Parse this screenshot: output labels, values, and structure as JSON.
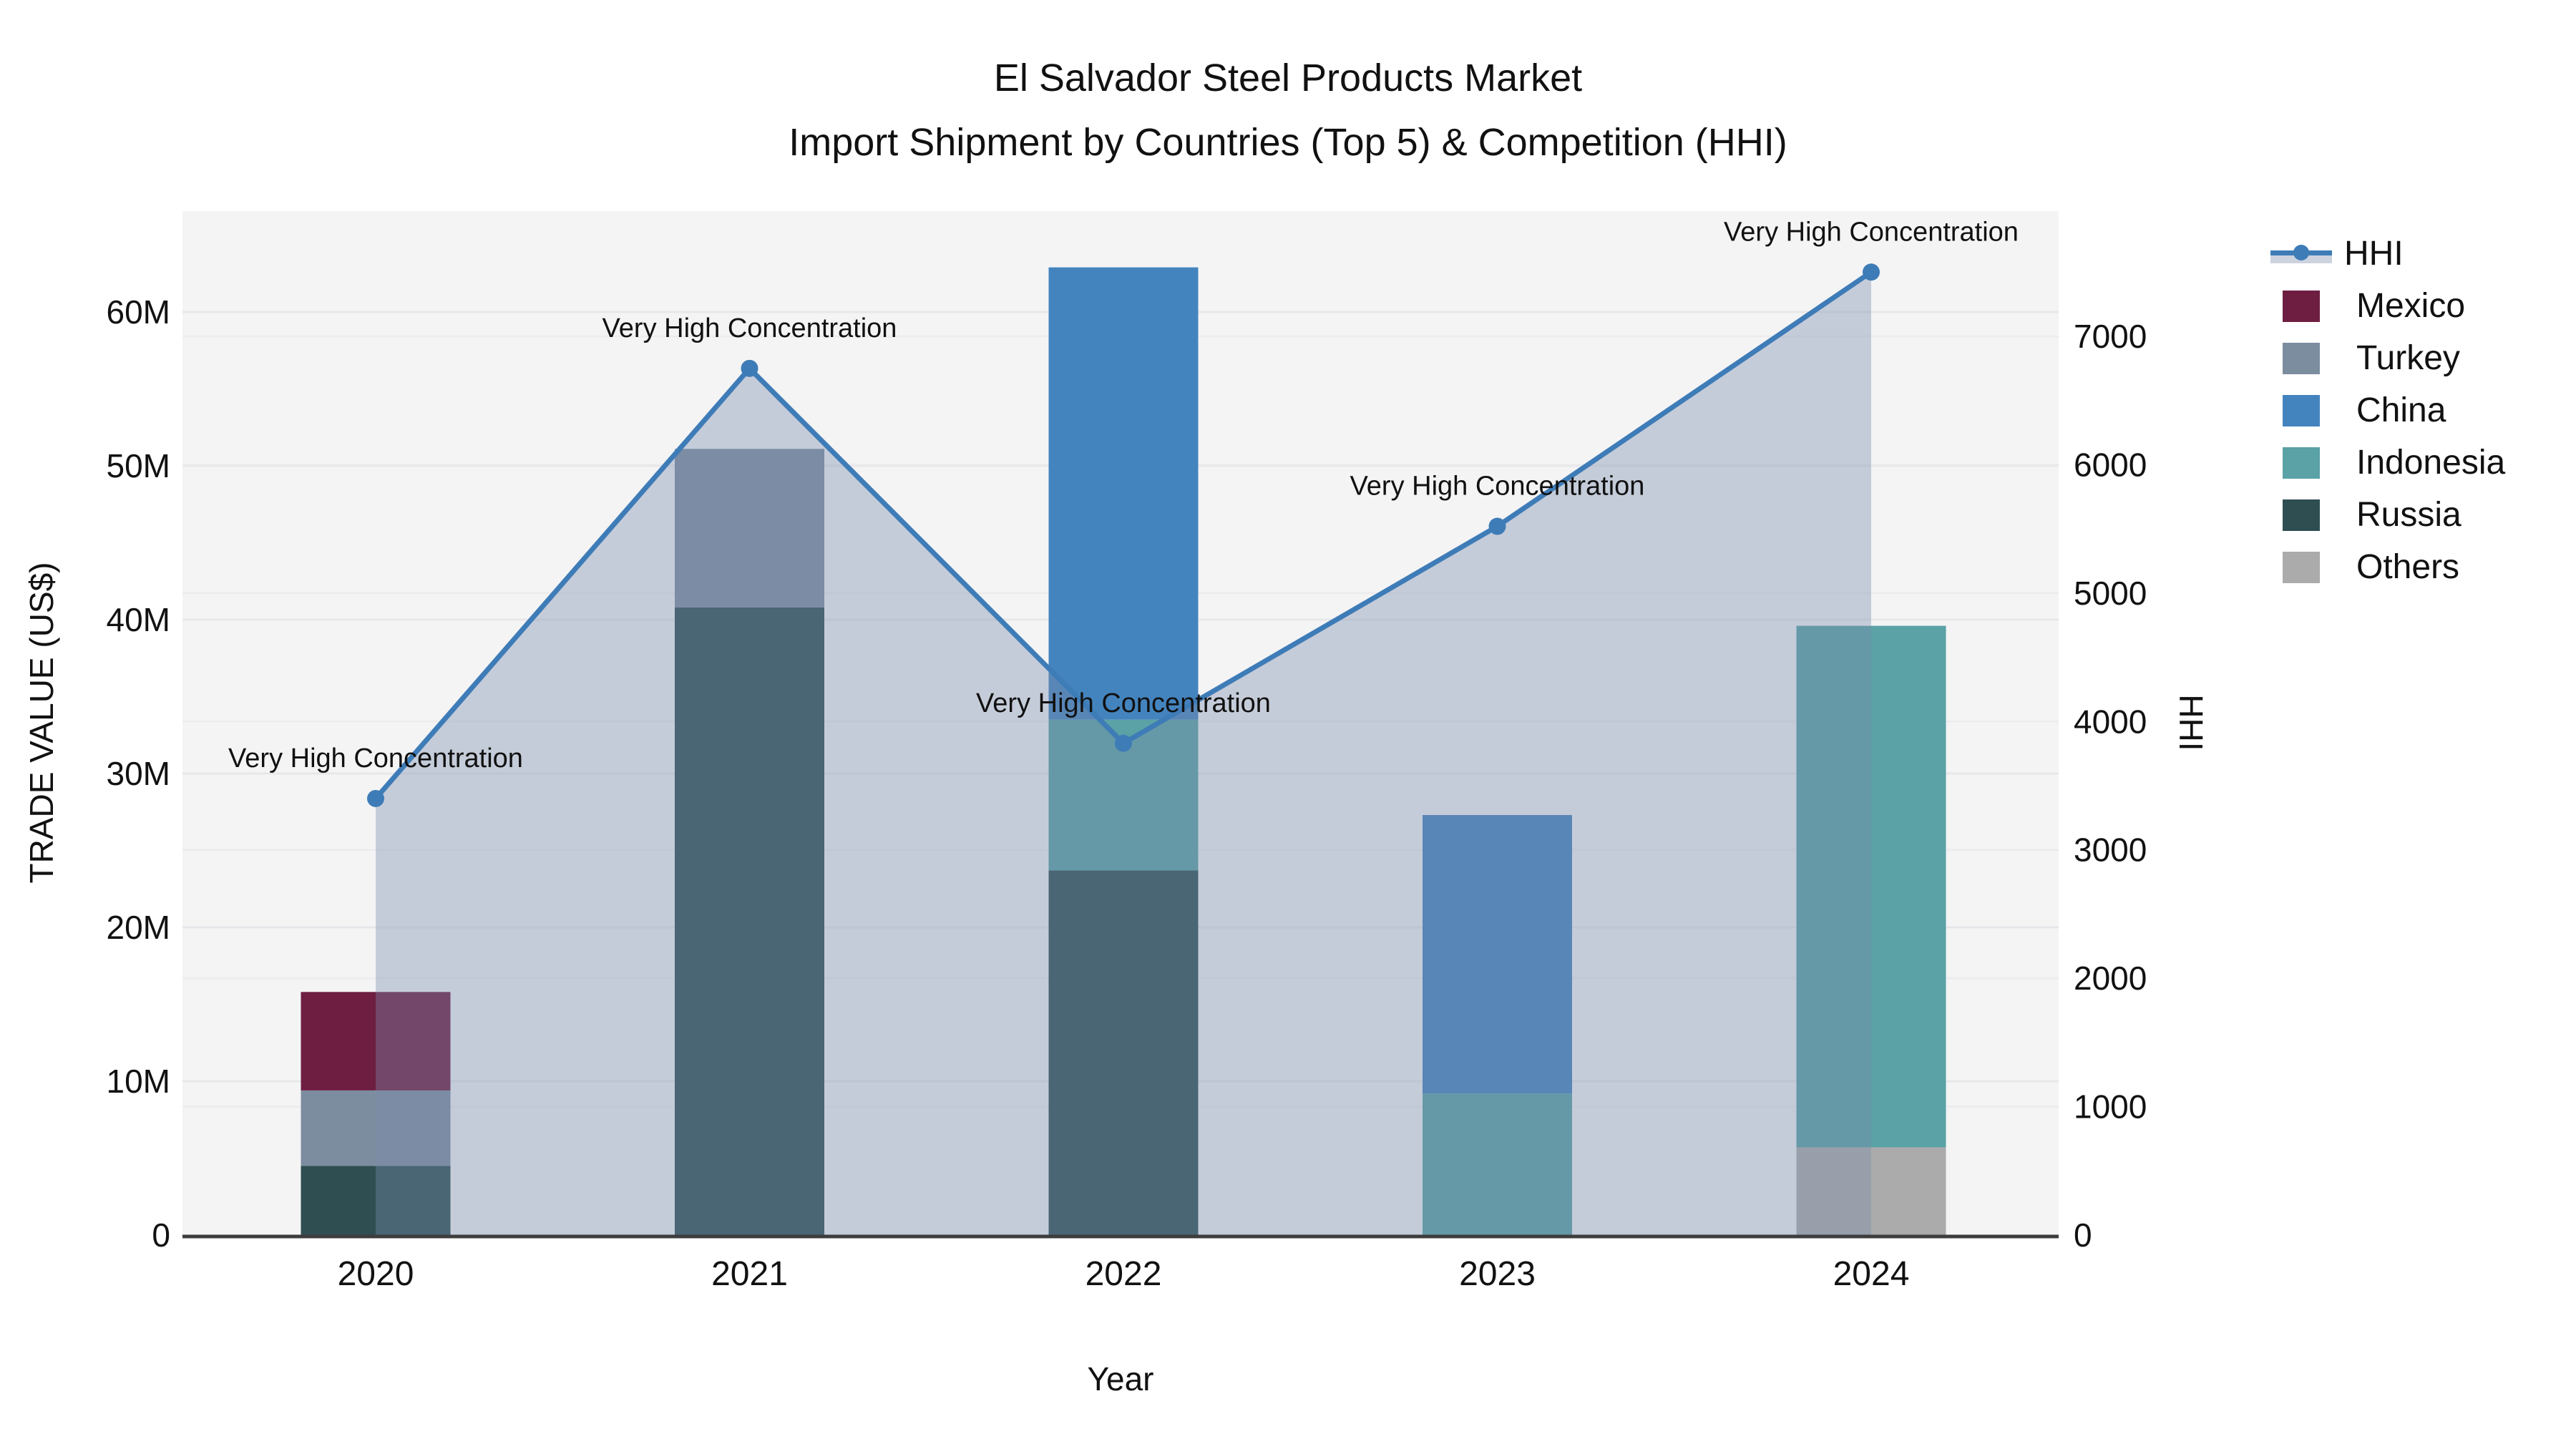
{
  "title": {
    "line1": "El Salvador Steel Products Market",
    "line2": "Import Shipment by Countries (Top 5) & Competition (HHI)"
  },
  "axes": {
    "x_title": "Year",
    "y_left_title": "TRADE VALUE (US$)",
    "y_right_title": "HHI",
    "x_ticks": [
      "2020",
      "2021",
      "2022",
      "2023",
      "2024"
    ],
    "y_left_ticks": [
      "0",
      "10M",
      "20M",
      "30M",
      "40M",
      "50M",
      "60M"
    ],
    "y_right_ticks": [
      "0",
      "1000",
      "2000",
      "3000",
      "4000",
      "5000",
      "6000",
      "7000"
    ]
  },
  "legend": {
    "items": [
      {
        "label": "HHI",
        "type": "line"
      },
      {
        "label": "Mexico",
        "type": "swatch",
        "color": "#6E1E41"
      },
      {
        "label": "Turkey",
        "type": "swatch",
        "color": "#7D8DA0"
      },
      {
        "label": "China",
        "type": "swatch",
        "color": "#4484BE"
      },
      {
        "label": "Indonesia",
        "type": "swatch",
        "color": "#5AA2A5"
      },
      {
        "label": "Russia",
        "type": "swatch",
        "color": "#2E4E52"
      },
      {
        "label": "Others",
        "type": "swatch",
        "color": "#ABABAB"
      }
    ]
  },
  "annotation_text": "Very High Concentration",
  "chart_data": {
    "type": "combo-stacked-bar-line",
    "categories": [
      "2020",
      "2021",
      "2022",
      "2023",
      "2024"
    ],
    "bar_unit": "million US$",
    "series": [
      {
        "name": "Mexico",
        "color": "#6E1E41",
        "values": [
          6.4,
          0,
          0,
          0,
          0
        ]
      },
      {
        "name": "Turkey",
        "color": "#7D8DA0",
        "values": [
          4.9,
          10.3,
          0,
          0,
          0
        ]
      },
      {
        "name": "China",
        "color": "#4484BE",
        "values": [
          0,
          0,
          29.4,
          18.1,
          0
        ]
      },
      {
        "name": "Indonesia",
        "color": "#5AA2A5",
        "values": [
          0,
          0,
          9.8,
          9.2,
          33.9
        ]
      },
      {
        "name": "Russia",
        "color": "#2E4E52",
        "values": [
          4.5,
          40.8,
          23.7,
          0,
          0
        ]
      },
      {
        "name": "Others",
        "color": "#ABABAB",
        "values": [
          0,
          0,
          0,
          0,
          5.7
        ]
      }
    ],
    "stack_order": [
      "Others",
      "Russia",
      "Indonesia",
      "China",
      "Turkey",
      "Mexico"
    ],
    "bar_totals": [
      15.8,
      51.1,
      62.9,
      27.3,
      39.6
    ],
    "line_series": {
      "name": "HHI",
      "color": "#3E7CB7",
      "area_color": "rgba(120,140,170,0.38)",
      "values": [
        3400,
        6750,
        3830,
        5520,
        7500
      ],
      "point_annotations": [
        "Very High Concentration",
        "Very High Concentration",
        "Very High Concentration",
        "Very High Concentration",
        "Very High Concentration"
      ]
    },
    "y_left_axis": {
      "label": "TRADE VALUE (US$)",
      "ticks": [
        0,
        10,
        20,
        30,
        40,
        50,
        60
      ],
      "tick_labels": [
        "0",
        "10M",
        "20M",
        "30M",
        "40M",
        "50M",
        "60M"
      ],
      "range_millions": [
        0,
        66.5
      ]
    },
    "y_right_axis": {
      "label": "HHI",
      "ticks": [
        0,
        1000,
        2000,
        3000,
        4000,
        5000,
        6000,
        7000
      ],
      "range": [
        0,
        7975
      ]
    },
    "x_axis": {
      "label": "Year"
    },
    "grid": true,
    "legend_position": "right",
    "plot_bg": "#F4F4F5",
    "grid_color_left": "#E7E7EA",
    "grid_color_right": "#ECECEF",
    "axis_line_color": "#3D3D3D",
    "text_color": "#111111"
  }
}
